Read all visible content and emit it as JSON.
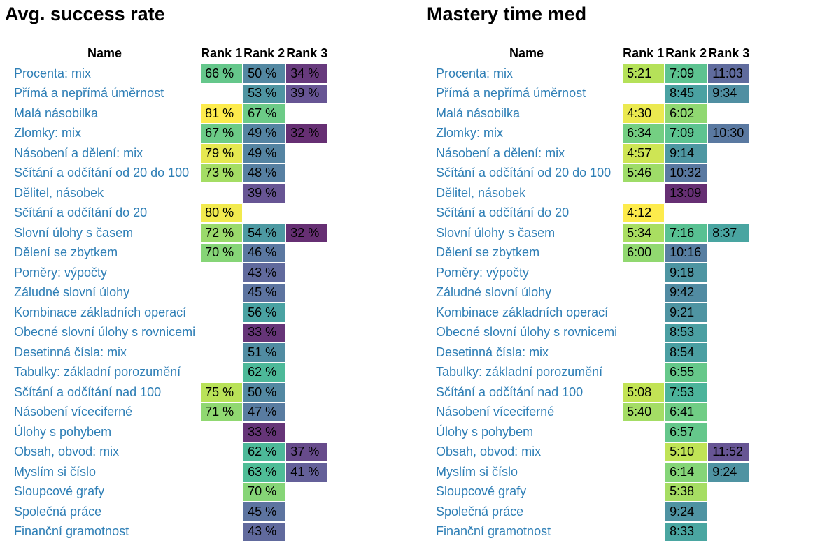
{
  "panels": [
    {
      "title": "Avg. success rate",
      "columns": [
        "Name",
        "Rank 1",
        "Rank 2",
        "Rank 3"
      ],
      "metric": "percent",
      "rows": [
        {
          "name": "Procenta: mix",
          "cells": [
            "66 %",
            "50 %",
            "34 %"
          ]
        },
        {
          "name": "Přímá a nepřímá úměrnost",
          "cells": [
            "",
            "53 %",
            "39 %"
          ]
        },
        {
          "name": "Malá násobilka",
          "cells": [
            "81 %",
            "67 %",
            ""
          ]
        },
        {
          "name": "Zlomky: mix",
          "cells": [
            "67 %",
            "49 %",
            "32 %"
          ]
        },
        {
          "name": "Násobení a dělení: mix",
          "cells": [
            "79 %",
            "49 %",
            ""
          ]
        },
        {
          "name": "Sčítání a odčítání od 20 do 100",
          "cells": [
            "73 %",
            "48 %",
            ""
          ]
        },
        {
          "name": "Dělitel, násobek",
          "cells": [
            "",
            "39 %",
            ""
          ]
        },
        {
          "name": "Sčítání a odčítání do 20",
          "cells": [
            "80 %",
            "",
            ""
          ]
        },
        {
          "name": "Slovní úlohy s časem",
          "cells": [
            "72 %",
            "54 %",
            "32 %"
          ]
        },
        {
          "name": "Dělení se zbytkem",
          "cells": [
            "70 %",
            "46 %",
            ""
          ]
        },
        {
          "name": "Poměry: výpočty",
          "cells": [
            "",
            "43 %",
            ""
          ]
        },
        {
          "name": "Záludné slovní úlohy",
          "cells": [
            "",
            "45 %",
            ""
          ]
        },
        {
          "name": "Kombinace základních operací",
          "cells": [
            "",
            "56 %",
            ""
          ]
        },
        {
          "name": "Obecné slovní úlohy s rovnicemi",
          "cells": [
            "",
            "33 %",
            ""
          ]
        },
        {
          "name": "Desetinná čísla: mix",
          "cells": [
            "",
            "51 %",
            ""
          ]
        },
        {
          "name": "Tabulky: základní porozumění",
          "cells": [
            "",
            "62 %",
            ""
          ]
        },
        {
          "name": "Sčítání a odčítání nad 100",
          "cells": [
            "75 %",
            "50 %",
            ""
          ]
        },
        {
          "name": "Násobení víceciferné",
          "cells": [
            "71 %",
            "47 %",
            ""
          ]
        },
        {
          "name": "Úlohy s pohybem",
          "cells": [
            "",
            "33 %",
            ""
          ]
        },
        {
          "name": "Obsah, obvod: mix",
          "cells": [
            "",
            "62 %",
            "37 %"
          ]
        },
        {
          "name": "Myslím si číslo",
          "cells": [
            "",
            "63 %",
            "41 %"
          ]
        },
        {
          "name": "Sloupcové grafy",
          "cells": [
            "",
            "70 %",
            ""
          ]
        },
        {
          "name": "Společná práce",
          "cells": [
            "",
            "45 %",
            ""
          ]
        },
        {
          "name": "Finanční gramotnost",
          "cells": [
            "",
            "43 %",
            ""
          ]
        }
      ]
    },
    {
      "title": "Mastery time med",
      "columns": [
        "Name",
        "Rank 1",
        "Rank 2",
        "Rank 3"
      ],
      "metric": "time",
      "rows": [
        {
          "name": "Procenta: mix",
          "cells": [
            "5:21",
            "7:09",
            "11:03"
          ]
        },
        {
          "name": "Přímá a nepřímá úměrnost",
          "cells": [
            "",
            "8:45",
            "9:34"
          ]
        },
        {
          "name": "Malá násobilka",
          "cells": [
            "4:30",
            "6:02",
            ""
          ]
        },
        {
          "name": "Zlomky: mix",
          "cells": [
            "6:34",
            "7:09",
            "10:30"
          ]
        },
        {
          "name": "Násobení a dělení: mix",
          "cells": [
            "4:57",
            "9:14",
            ""
          ]
        },
        {
          "name": "Sčítání a odčítání od 20 do 100",
          "cells": [
            "5:46",
            "10:32",
            ""
          ]
        },
        {
          "name": "Dělitel, násobek",
          "cells": [
            "",
            "13:09",
            ""
          ]
        },
        {
          "name": "Sčítání a odčítání do 20",
          "cells": [
            "4:12",
            "",
            ""
          ]
        },
        {
          "name": "Slovní úlohy s časem",
          "cells": [
            "5:34",
            "7:16",
            "8:37"
          ]
        },
        {
          "name": "Dělení se zbytkem",
          "cells": [
            "6:00",
            "10:16",
            ""
          ]
        },
        {
          "name": "Poměry: výpočty",
          "cells": [
            "",
            "9:18",
            ""
          ]
        },
        {
          "name": "Záludné slovní úlohy",
          "cells": [
            "",
            "9:42",
            ""
          ]
        },
        {
          "name": "Kombinace základních operací",
          "cells": [
            "",
            "9:21",
            ""
          ]
        },
        {
          "name": "Obecné slovní úlohy s rovnicemi",
          "cells": [
            "",
            "8:53",
            ""
          ]
        },
        {
          "name": "Desetinná čísla: mix",
          "cells": [
            "",
            "8:54",
            ""
          ]
        },
        {
          "name": "Tabulky: základní porozumění",
          "cells": [
            "",
            "6:55",
            ""
          ]
        },
        {
          "name": "Sčítání a odčítání nad 100",
          "cells": [
            "5:08",
            "7:53",
            ""
          ]
        },
        {
          "name": "Násobení víceciferné",
          "cells": [
            "5:40",
            "6:41",
            ""
          ]
        },
        {
          "name": "Úlohy s pohybem",
          "cells": [
            "",
            "6:57",
            ""
          ]
        },
        {
          "name": "Obsah, obvod: mix",
          "cells": [
            "",
            "5:10",
            "11:52"
          ]
        },
        {
          "name": "Myslím si číslo",
          "cells": [
            "",
            "6:14",
            "9:24"
          ]
        },
        {
          "name": "Sloupcové grafy",
          "cells": [
            "",
            "5:38",
            ""
          ]
        },
        {
          "name": "Společná práce",
          "cells": [
            "",
            "9:24",
            ""
          ]
        },
        {
          "name": "Finanční gramotnost",
          "cells": [
            "",
            "8:33",
            ""
          ]
        }
      ]
    }
  ],
  "chart_data": [
    {
      "type": "heatmap",
      "title": "Avg. success rate",
      "colormap": "viridis",
      "x": [
        "Rank 1",
        "Rank 2",
        "Rank 3"
      ],
      "y": [
        "Procenta: mix",
        "Přímá a nepřímá úměrnost",
        "Malá násobilka",
        "Zlomky: mix",
        "Násobení a dělení: mix",
        "Sčítání a odčítání od 20 do 100",
        "Dělitel, násobek",
        "Sčítání a odčítání do 20",
        "Slovní úlohy s časem",
        "Dělení se zbytkem",
        "Poměry: výpočty",
        "Záludné slovní úlohy",
        "Kombinace základních operací",
        "Obecné slovní úlohy s rovnicemi",
        "Desetinná čísla: mix",
        "Tabulky: základní porozumění",
        "Sčítání a odčítání nad 100",
        "Násobení víceciferné",
        "Úlohy s pohybem",
        "Obsah, obvod: mix",
        "Myslím si číslo",
        "Sloupcové grafy",
        "Společná práce",
        "Finanční gramotnost"
      ],
      "values_percent": [
        [
          66,
          50,
          34
        ],
        [
          null,
          53,
          39
        ],
        [
          81,
          67,
          null
        ],
        [
          67,
          49,
          32
        ],
        [
          79,
          49,
          null
        ],
        [
          73,
          48,
          null
        ],
        [
          null,
          39,
          null
        ],
        [
          80,
          null,
          null
        ],
        [
          72,
          54,
          32
        ],
        [
          70,
          46,
          null
        ],
        [
          null,
          43,
          null
        ],
        [
          null,
          45,
          null
        ],
        [
          null,
          56,
          null
        ],
        [
          null,
          33,
          null
        ],
        [
          null,
          51,
          null
        ],
        [
          null,
          62,
          null
        ],
        [
          75,
          50,
          null
        ],
        [
          71,
          47,
          null
        ],
        [
          null,
          33,
          null
        ],
        [
          null,
          62,
          37
        ],
        [
          null,
          63,
          41
        ],
        [
          null,
          70,
          null
        ],
        [
          null,
          45,
          null
        ],
        [
          null,
          43,
          null
        ]
      ]
    },
    {
      "type": "heatmap",
      "title": "Mastery time med",
      "colormap": "viridis_reversed",
      "x": [
        "Rank 1",
        "Rank 2",
        "Rank 3"
      ],
      "y": [
        "Procenta: mix",
        "Přímá a nepřímá úměrnost",
        "Malá násobilka",
        "Zlomky: mix",
        "Násobení a dělení: mix",
        "Sčítání a odčítání od 20 do 100",
        "Dělitel, násobek",
        "Sčítání a odčítání do 20",
        "Slovní úlohy s časem",
        "Dělení se zbytkem",
        "Poměry: výpočty",
        "Záludné slovní úlohy",
        "Kombinace základních operací",
        "Obecné slovní úlohy s rovnicemi",
        "Desetinná čísla: mix",
        "Tabulky: základní porozumění",
        "Sčítání a odčítání nad 100",
        "Násobení víceciferné",
        "Úlohy s pohybem",
        "Obsah, obvod: mix",
        "Myslím si číslo",
        "Sloupcové grafy",
        "Společná práce",
        "Finanční gramotnost"
      ],
      "values_mmss": [
        [
          "5:21",
          "7:09",
          "11:03"
        ],
        [
          null,
          "8:45",
          "9:34"
        ],
        [
          "4:30",
          "6:02",
          null
        ],
        [
          "6:34",
          "7:09",
          "10:30"
        ],
        [
          "4:57",
          "9:14",
          null
        ],
        [
          "5:46",
          "10:32",
          null
        ],
        [
          null,
          "13:09",
          null
        ],
        [
          "4:12",
          null,
          null
        ],
        [
          "5:34",
          "7:16",
          "8:37"
        ],
        [
          "6:00",
          "10:16",
          null
        ],
        [
          null,
          "9:18",
          null
        ],
        [
          null,
          "9:42",
          null
        ],
        [
          null,
          "9:21",
          null
        ],
        [
          null,
          "8:53",
          null
        ],
        [
          null,
          "8:54",
          null
        ],
        [
          null,
          "6:55",
          null
        ],
        [
          "5:08",
          "7:53",
          null
        ],
        [
          "5:40",
          "6:41",
          null
        ],
        [
          null,
          "6:57",
          null
        ],
        [
          null,
          "5:10",
          "11:52"
        ],
        [
          null,
          "6:14",
          "9:24"
        ],
        [
          null,
          "5:38",
          null
        ],
        [
          null,
          "9:24",
          null
        ],
        [
          null,
          "8:33",
          null
        ]
      ]
    }
  ]
}
